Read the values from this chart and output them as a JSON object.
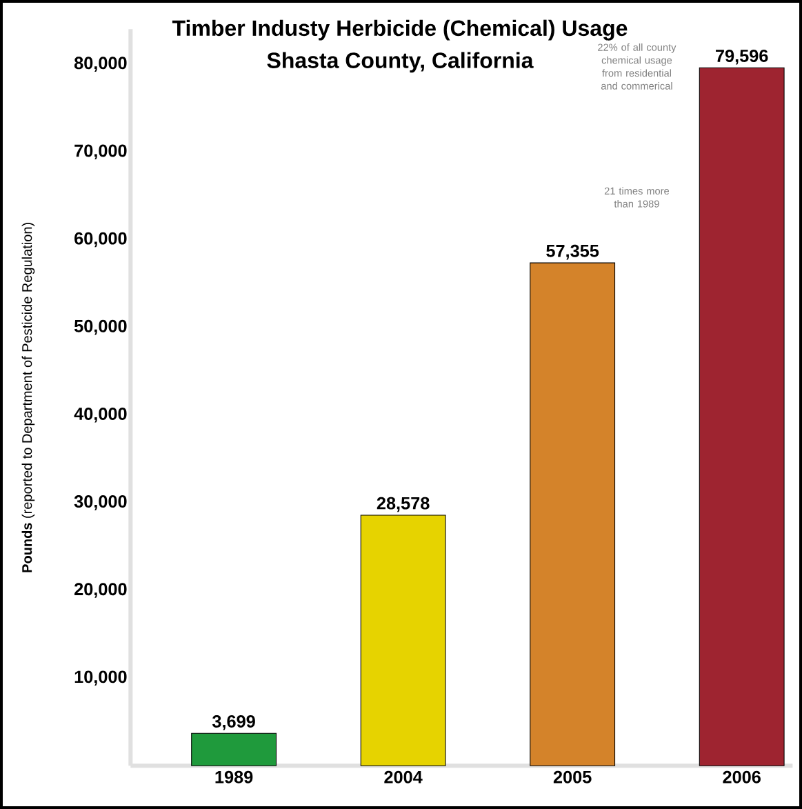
{
  "chart_data": {
    "type": "bar",
    "title": "Timber Industy Herbicide (Chemical) Usage",
    "subtitle": "Shasta County, California",
    "ylabel": "**Pounds** (reported to Department of Pesticide Regulation)",
    "categories": [
      "1989",
      "2004",
      "2005",
      "2006"
    ],
    "values": [
      3699,
      28578,
      57355,
      79596
    ],
    "value_labels": [
      "3,699",
      "28,578",
      "57,355",
      "79,596"
    ],
    "colors": [
      "#1f9a3c",
      "#e6d300",
      "#d4832a",
      "#9e2430"
    ],
    "ylim": [
      0,
      84000
    ],
    "yticks": [
      {
        "value": 10000,
        "label": "10,000"
      },
      {
        "value": 20000,
        "label": "20,000"
      },
      {
        "value": 30000,
        "label": "30,000"
      },
      {
        "value": 40000,
        "label": "40,000"
      },
      {
        "value": 50000,
        "label": "50,000"
      },
      {
        "value": 60000,
        "label": "60,000"
      },
      {
        "value": 70000,
        "label": "70,000"
      },
      {
        "value": 80000,
        "label": "80,000"
      }
    ],
    "annotations": [
      "22% of all county chemical usage from residential and commerical",
      "21 times more than 1989"
    ],
    "grid": false
  }
}
